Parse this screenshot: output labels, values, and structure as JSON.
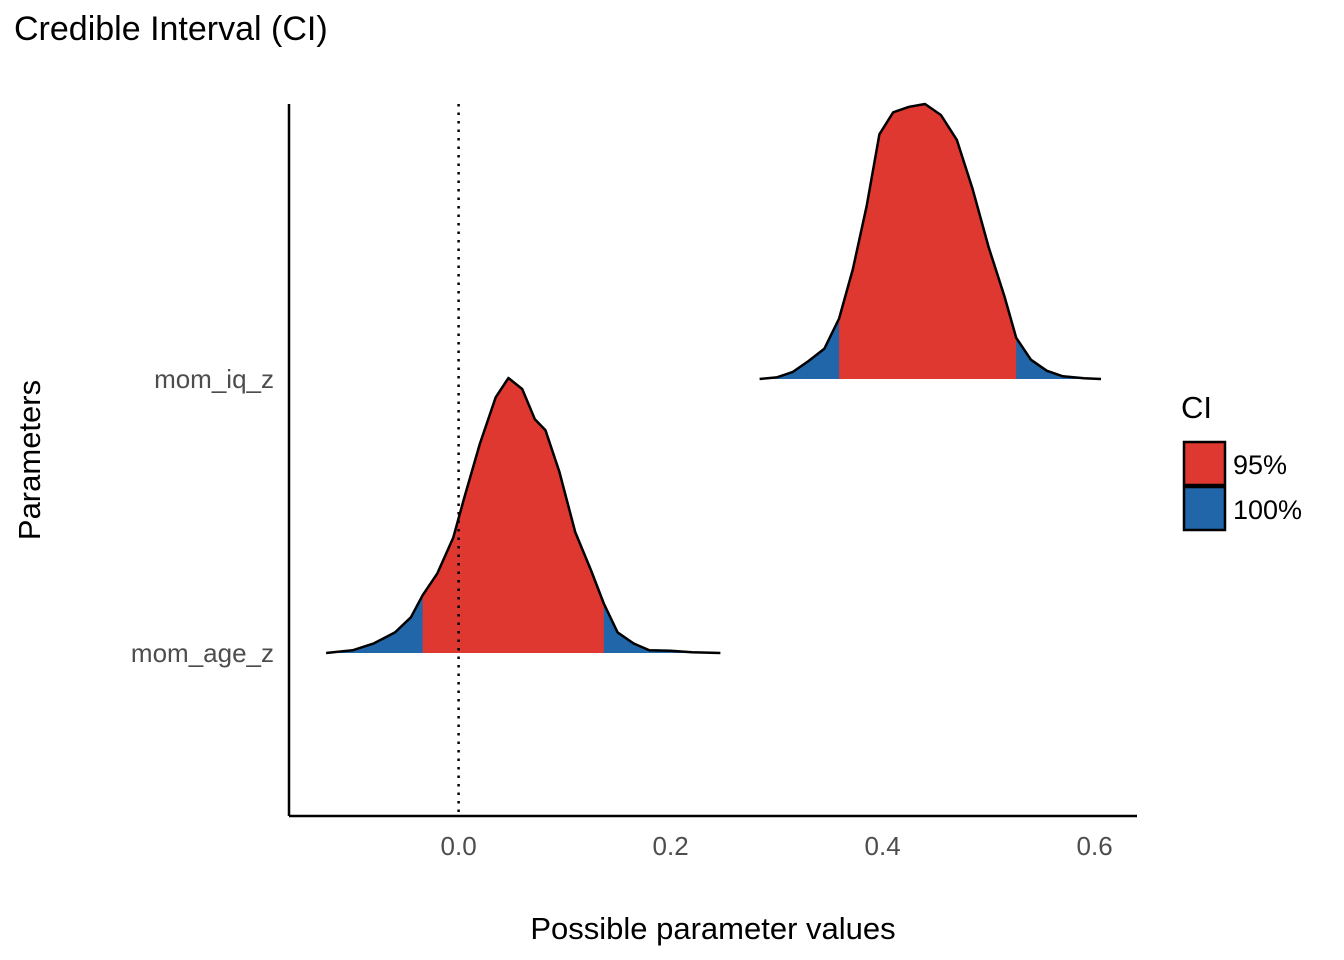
{
  "chart_data": {
    "type": "area",
    "subtype": "ridgeline-density",
    "title": "Credible Interval (CI)",
    "xlabel": "Possible parameter values",
    "ylabel": "Parameters",
    "xlim": [
      -0.16,
      0.64
    ],
    "x_ticks": [
      0.0,
      0.2,
      0.4,
      0.6
    ],
    "x_tick_labels": [
      "0.0",
      "0.2",
      "0.4",
      "0.6"
    ],
    "reference_line": {
      "x": 0.0,
      "style": "dotted"
    },
    "legend": {
      "title": "CI",
      "position": "right",
      "items": [
        {
          "label": "95%",
          "color": "#de3830"
        },
        {
          "label": "100%",
          "color": "#2066a8"
        }
      ]
    },
    "grid": false,
    "series": [
      {
        "name": "mom_age_z",
        "ci95": [
          -0.034,
          0.137
        ],
        "range": [
          -0.125,
          0.247
        ],
        "density_x": [
          -0.125,
          -0.1,
          -0.08,
          -0.06,
          -0.045,
          -0.034,
          -0.02,
          -0.005,
          0.005,
          0.02,
          0.035,
          0.047,
          0.06,
          0.072,
          0.082,
          0.095,
          0.11,
          0.125,
          0.137,
          0.15,
          0.165,
          0.18,
          0.2,
          0.22,
          0.247
        ],
        "density_y": [
          0.0,
          0.01,
          0.035,
          0.075,
          0.13,
          0.21,
          0.29,
          0.42,
          0.56,
          0.76,
          0.93,
          1.0,
          0.96,
          0.85,
          0.81,
          0.66,
          0.44,
          0.3,
          0.18,
          0.075,
          0.035,
          0.01,
          0.008,
          0.003,
          0.0
        ]
      },
      {
        "name": "mom_iq_z",
        "ci95": [
          0.359,
          0.526
        ],
        "range": [
          0.284,
          0.606
        ],
        "density_x": [
          0.284,
          0.3,
          0.315,
          0.33,
          0.345,
          0.359,
          0.372,
          0.385,
          0.397,
          0.41,
          0.425,
          0.44,
          0.455,
          0.47,
          0.485,
          0.5,
          0.515,
          0.526,
          0.54,
          0.555,
          0.57,
          0.59,
          0.606
        ],
        "density_y": [
          0.0,
          0.006,
          0.025,
          0.065,
          0.11,
          0.22,
          0.4,
          0.63,
          0.89,
          0.97,
          0.99,
          1.0,
          0.96,
          0.87,
          0.69,
          0.48,
          0.3,
          0.15,
          0.07,
          0.03,
          0.01,
          0.003,
          0.0
        ]
      }
    ]
  }
}
